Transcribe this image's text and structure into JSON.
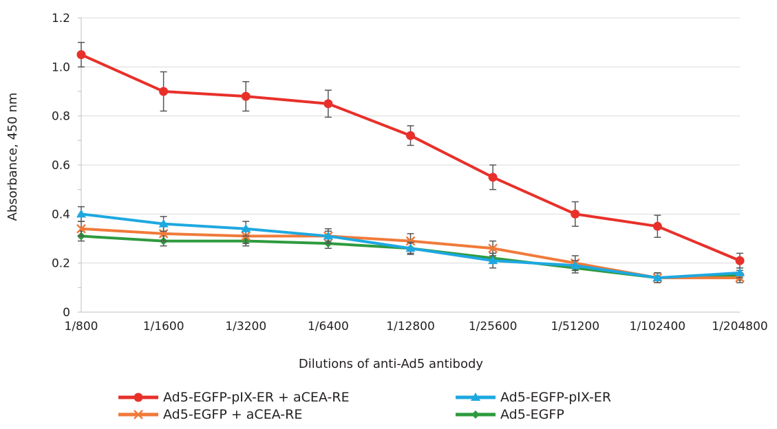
{
  "chart_data": {
    "type": "line",
    "title": "",
    "xlabel": "Dilutions of anti-Ad5 antibody",
    "ylabel": "Absorbance, 450 nm",
    "categories": [
      "1/800",
      "1/1600",
      "1/3200",
      "1/6400",
      "1/12800",
      "1/25600",
      "1/51200",
      "1/102400",
      "1/204800"
    ],
    "ylim": [
      0,
      1.2
    ],
    "yticks": [
      "0",
      "0.2",
      "0.4",
      "0.6",
      "0.8",
      "1.0",
      "1.2"
    ],
    "grid": "horizontal",
    "legend_position": "bottom",
    "series": [
      {
        "name": "Ad5-EGFP-pIX-ER + aCEA-RE",
        "color": "#e8302a",
        "marker": "circle",
        "values": [
          1.05,
          0.9,
          0.88,
          0.85,
          0.72,
          0.55,
          0.4,
          0.35,
          0.21
        ],
        "errors": [
          0.05,
          0.08,
          0.06,
          0.055,
          0.04,
          0.05,
          0.05,
          0.045,
          0.03
        ]
      },
      {
        "name": "Ad5-EGFP-pIX-ER",
        "color": "#1ea8e0",
        "marker": "triangle",
        "values": [
          0.4,
          0.36,
          0.34,
          0.31,
          0.26,
          0.21,
          0.19,
          0.14,
          0.16
        ],
        "errors": [
          0.03,
          0.03,
          0.03,
          0.03,
          0.025,
          0.03,
          0.02,
          0.02,
          0.02
        ]
      },
      {
        "name": "Ad5-EGFP + aCEA-RE",
        "color": "#f07a3a",
        "marker": "x",
        "values": [
          0.34,
          0.32,
          0.31,
          0.31,
          0.29,
          0.26,
          0.2,
          0.14,
          0.14
        ],
        "errors": [
          0.03,
          0.03,
          0.03,
          0.02,
          0.03,
          0.03,
          0.03,
          0.02,
          0.02
        ]
      },
      {
        "name": "Ad5-EGFP",
        "color": "#2e9a3e",
        "marker": "diamond",
        "values": [
          0.31,
          0.29,
          0.29,
          0.28,
          0.26,
          0.22,
          0.18,
          0.14,
          0.15
        ],
        "errors": [
          0.02,
          0.02,
          0.02,
          0.02,
          0.02,
          0.02,
          0.02,
          0.02,
          0.02
        ]
      }
    ]
  }
}
